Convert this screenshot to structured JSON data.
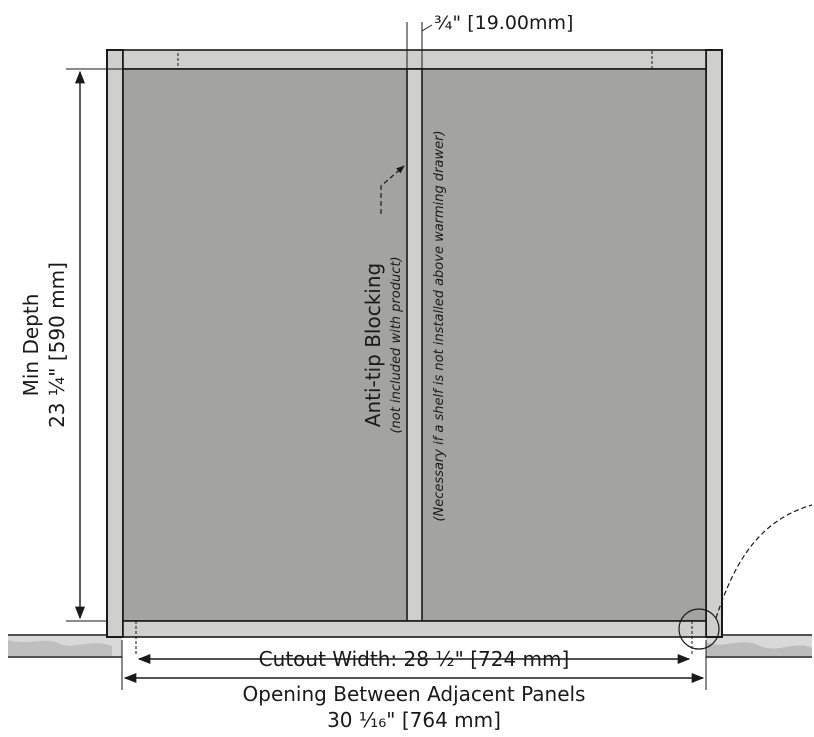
{
  "diagram": {
    "colors": {
      "panel_fill": "#a3a4a2",
      "frame_fill": "#cfd0ce",
      "line": "#1a1a1a",
      "floor": "#bdbdbd"
    },
    "labels": {
      "top_dim": "¾\" [19.00mm]",
      "min_depth_line1": "Min Depth",
      "min_depth_line2": "23 ¼\" [590 mm]",
      "blocking_title": "Anti-tip Blocking",
      "blocking_sub": "(not included with product)",
      "necessary_note": "(Necessary if a shelf is not installed above warming drawer)",
      "cutout_width": "Cutout Width: 28 ½\" [724 mm]",
      "opening_line1": "Opening Between Adjacent Panels",
      "opening_line2": "30 ¹⁄₁₆\" [764 mm]"
    }
  }
}
